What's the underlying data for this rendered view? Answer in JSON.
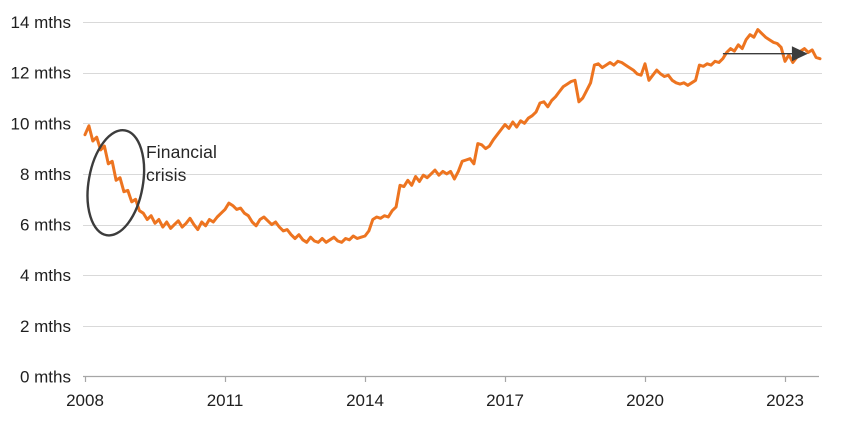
{
  "chart_data": {
    "type": "line",
    "title": "",
    "ylabel_unit": "mths",
    "grid": "horizontal",
    "legend": "none",
    "ylim": [
      0,
      14
    ],
    "xlim": [
      2008.0,
      2023.85
    ],
    "y_ticks": [
      {
        "value": 0,
        "label": "0 mths"
      },
      {
        "value": 2,
        "label": "2 mths"
      },
      {
        "value": 4,
        "label": "4 mths"
      },
      {
        "value": 6,
        "label": "6 mths"
      },
      {
        "value": 8,
        "label": "8 mths"
      },
      {
        "value": 10,
        "label": "10 mths"
      },
      {
        "value": 12,
        "label": "12 mths"
      },
      {
        "value": 14,
        "label": "14 mths"
      }
    ],
    "x_ticks": [
      {
        "value": 2008,
        "label": "2008"
      },
      {
        "value": 2011,
        "label": "2011"
      },
      {
        "value": 2014,
        "label": "2014"
      },
      {
        "value": 2017,
        "label": "2017"
      },
      {
        "value": 2020,
        "label": "2020"
      },
      {
        "value": 2023,
        "label": "2023"
      }
    ],
    "series": [
      {
        "name": "months",
        "start_year": 2008,
        "interval_months": 1,
        "values": [
          9.55,
          9.9,
          9.3,
          9.45,
          8.95,
          9.1,
          8.4,
          8.5,
          7.75,
          7.85,
          7.3,
          7.35,
          6.9,
          7.0,
          6.55,
          6.45,
          6.2,
          6.35,
          6.05,
          6.2,
          5.9,
          6.1,
          5.85,
          6.0,
          6.15,
          5.9,
          6.05,
          6.25,
          6.0,
          5.8,
          6.1,
          5.95,
          6.2,
          6.1,
          6.3,
          6.45,
          6.6,
          6.85,
          6.75,
          6.6,
          6.65,
          6.45,
          6.35,
          6.1,
          5.95,
          6.2,
          6.3,
          6.15,
          6.0,
          6.1,
          5.9,
          5.75,
          5.8,
          5.6,
          5.45,
          5.6,
          5.4,
          5.3,
          5.5,
          5.35,
          5.3,
          5.45,
          5.3,
          5.4,
          5.5,
          5.35,
          5.3,
          5.45,
          5.4,
          5.55,
          5.45,
          5.5,
          5.55,
          5.75,
          6.2,
          6.3,
          6.25,
          6.35,
          6.3,
          6.55,
          6.7,
          7.55,
          7.5,
          7.75,
          7.55,
          7.9,
          7.7,
          7.95,
          7.85,
          8.0,
          8.15,
          7.95,
          8.1,
          8.0,
          8.1,
          7.8,
          8.1,
          8.5,
          8.55,
          8.6,
          8.4,
          9.2,
          9.15,
          9.0,
          9.1,
          9.35,
          9.55,
          9.75,
          9.95,
          9.8,
          10.05,
          9.85,
          10.1,
          10.0,
          10.2,
          10.3,
          10.45,
          10.8,
          10.85,
          10.65,
          10.9,
          11.05,
          11.25,
          11.45,
          11.55,
          11.65,
          11.7,
          10.85,
          11.0,
          11.3,
          11.6,
          12.3,
          12.35,
          12.2,
          12.3,
          12.4,
          12.3,
          12.45,
          12.4,
          12.3,
          12.2,
          12.1,
          11.95,
          11.9,
          12.35,
          11.7,
          11.9,
          12.1,
          11.95,
          11.85,
          11.9,
          11.7,
          11.6,
          11.55,
          11.6,
          11.5,
          11.6,
          11.7,
          12.3,
          12.25,
          12.35,
          12.3,
          12.45,
          12.4,
          12.55,
          12.8,
          12.95,
          12.85,
          13.1,
          12.95,
          13.3,
          13.5,
          13.4,
          13.7,
          13.55,
          13.4,
          13.3,
          13.2,
          13.15,
          13.0,
          12.45,
          12.7,
          12.4,
          12.6,
          12.85,
          12.95,
          12.8,
          12.9,
          12.6,
          12.55
        ]
      }
    ],
    "annotations": {
      "crisis": {
        "line1": "Financial",
        "line2": "crisis",
        "ellipse_center_year": 2008.66,
        "ellipse_center_value": 7.65,
        "ellipse_half_width_years": 0.58,
        "ellipse_half_height_value": 2.1,
        "ellipse_rotation_deg": 10
      },
      "arrow": {
        "from_year": 2021.67,
        "to_year": 2023.49,
        "at_value": 12.75
      }
    },
    "colors": {
      "line": "#ED7420",
      "grid": "#D9D9D9",
      "axis": "#A6A6A6",
      "text": "#1F1F1F",
      "annotation": "#3C3C3C"
    }
  }
}
